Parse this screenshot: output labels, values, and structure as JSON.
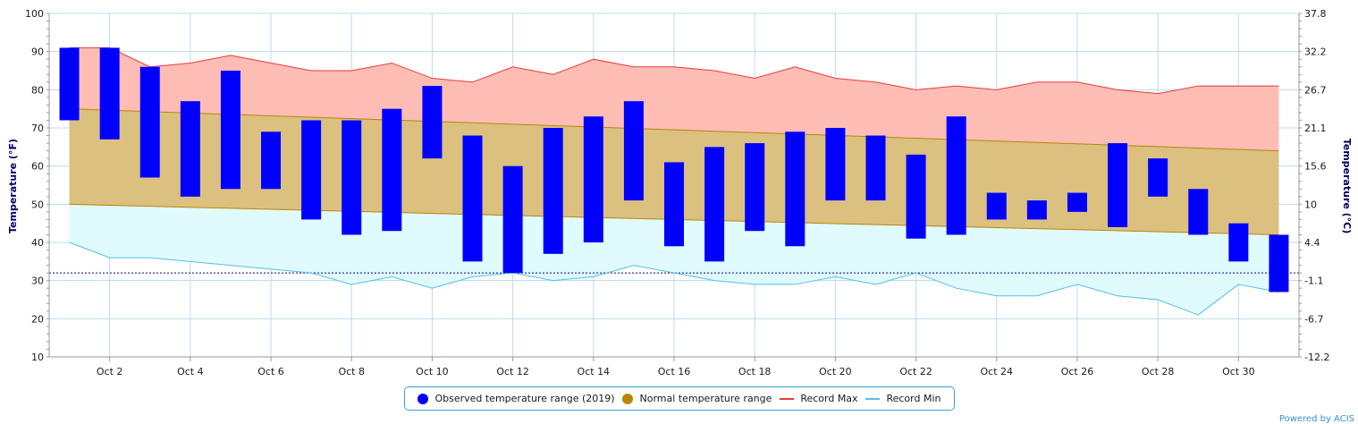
{
  "chart_data": {
    "type": "floating-bar-with-areas",
    "y_left_label": "Temperature (°F)",
    "y_right_label": "Temperature (°C)",
    "ylim": [
      10,
      100
    ],
    "y_ticks_left": [
      "10",
      "20",
      "30",
      "40",
      "50",
      "60",
      "70",
      "80",
      "90",
      "100"
    ],
    "y_ticks_right": [
      "-12.2",
      "-6.7",
      "-1.1",
      "4.4",
      "10",
      "15.6",
      "21.1",
      "26.7",
      "32.2",
      "37.8"
    ],
    "x_days": [
      1,
      2,
      3,
      4,
      5,
      6,
      7,
      8,
      9,
      10,
      11,
      12,
      13,
      14,
      15,
      16,
      17,
      18,
      19,
      20,
      21,
      22,
      23,
      24,
      25,
      26,
      27,
      28,
      29,
      30,
      31
    ],
    "x_tick_labels": [
      "Oct 2",
      "Oct 4",
      "Oct 6",
      "Oct 8",
      "Oct 10",
      "Oct 12",
      "Oct 14",
      "Oct 16",
      "Oct 18",
      "Oct 20",
      "Oct 22",
      "Oct 24",
      "Oct 26",
      "Oct 28",
      "Oct 30"
    ],
    "freezing_line": 32,
    "series": [
      {
        "name": "Observed temperature range (2019)",
        "color": "#0000ff",
        "low": [
          72,
          67,
          57,
          52,
          54,
          54,
          46,
          42,
          43,
          62,
          35,
          32,
          37,
          40,
          51,
          39,
          35,
          43,
          39,
          51,
          51,
          41,
          42,
          46,
          46,
          48,
          44,
          52,
          42,
          35,
          27
        ],
        "high": [
          91,
          91,
          86,
          77,
          85,
          69,
          72,
          72,
          75,
          81,
          68,
          60,
          70,
          73,
          77,
          61,
          65,
          66,
          69,
          70,
          68,
          63,
          73,
          53,
          51,
          53,
          66,
          62,
          54,
          45,
          42
        ]
      },
      {
        "name": "Normal temperature range",
        "color": "#b8860b",
        "low_start": 50,
        "low_end": 42,
        "high_start": 75,
        "high_end": 64
      },
      {
        "name": "Record Max",
        "color": "#e83a3a",
        "values": [
          91,
          91,
          86,
          87,
          89,
          87,
          85,
          85,
          87,
          83,
          82,
          86,
          84,
          88,
          86,
          86,
          85,
          83,
          86,
          83,
          82,
          80,
          81,
          80,
          82,
          82,
          80,
          79,
          81,
          81,
          81
        ]
      },
      {
        "name": "Record Min",
        "color": "#55bde8",
        "values": [
          40,
          36,
          36,
          35,
          34,
          33,
          32,
          29,
          31,
          28,
          31,
          32,
          30,
          31,
          34,
          32,
          30,
          29,
          29,
          31,
          29,
          32,
          28,
          26,
          26,
          29,
          26,
          25,
          21,
          29,
          27
        ]
      }
    ]
  },
  "legend": {
    "observed": "Observed temperature range (2019)",
    "normal": "Normal temperature range",
    "record_max": "Record Max",
    "record_min": "Record Min"
  },
  "credit": "Powered by ACIS",
  "colors": {
    "observed": "#0000ff",
    "normal": "#b8860b",
    "record_max": "#e83a3a",
    "record_min": "#55bde8",
    "grid": "#b8dcef",
    "freeze": "#000099"
  }
}
